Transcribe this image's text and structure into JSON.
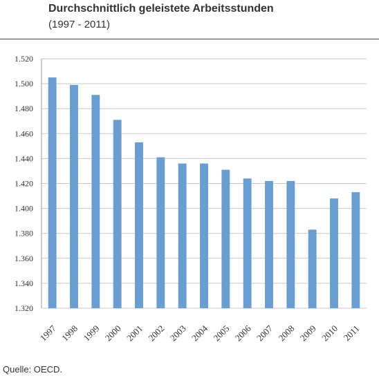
{
  "header": {
    "title": "Durchschnittlich geleistete Arbeitsstunden",
    "subtitle": "(1997 - 2011)"
  },
  "source": "Quelle: OECD.",
  "chart_data": {
    "type": "bar",
    "categories": [
      "1997",
      "1998",
      "1999",
      "2000",
      "2001",
      "2002",
      "2003",
      "2004",
      "2005",
      "2006",
      "2007",
      "2008",
      "2009",
      "2010",
      "2011"
    ],
    "values": [
      1505,
      1499,
      1491,
      1471,
      1453,
      1441,
      1436,
      1436,
      1431,
      1424,
      1422,
      1422,
      1383,
      1408,
      1413
    ],
    "ylim": [
      1320,
      1520
    ],
    "yticks": [
      "1.320",
      "1.340",
      "1.360",
      "1.380",
      "1.400",
      "1.420",
      "1.440",
      "1.460",
      "1.480",
      "1.500",
      "1.520"
    ],
    "grid": true,
    "bar_color": "#6a9ed1"
  }
}
